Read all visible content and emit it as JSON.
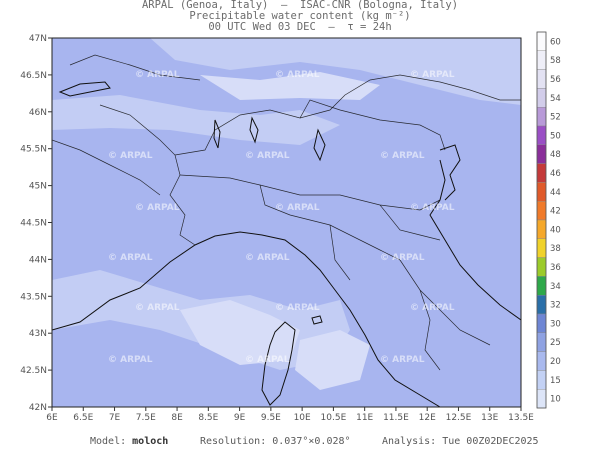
{
  "header": {
    "line1": "ARPAL (Genoa, Italy)  —  ISAC-CNR (Bologna, Italy)",
    "line2": "Precipitable water content (kg m⁻²)",
    "line3": "00 UTC Wed 03 DEC  —  τ = 24h"
  },
  "watermark": "ARPAL",
  "lat_ticks": [
    "47N",
    "46.5N",
    "46N",
    "45.5N",
    "45N",
    "44.5N",
    "44N",
    "43.5N",
    "43N",
    "42.5N",
    "42N"
  ],
  "lon_ticks": [
    "6E",
    "6.5E",
    "7E",
    "7.5E",
    "8E",
    "8.5E",
    "9E",
    "9.5E",
    "10E",
    "10.5E",
    "11E",
    "11.5E",
    "12E",
    "12.5E",
    "13E",
    "13.5E"
  ],
  "colorbar": {
    "labels": [
      "60",
      "58",
      "56",
      "54",
      "52",
      "50",
      "48",
      "46",
      "44",
      "42",
      "40",
      "38",
      "36",
      "34",
      "32",
      "30",
      "25",
      "20",
      "15",
      "10"
    ],
    "colors": [
      "#fbfbfd",
      "#efeff8",
      "#e3e2f3",
      "#d2cdea",
      "#b89ad8",
      "#9a4fc5",
      "#8a2f9a",
      "#c43a3a",
      "#e05a2a",
      "#f07a2a",
      "#f5a82a",
      "#f0d22a",
      "#9ccb2a",
      "#2ea84a",
      "#2a6fa8",
      "#6e86d4",
      "#8fa2e2",
      "#a9b9ee",
      "#c3d1f4",
      "#dde5f8"
    ]
  },
  "map": {
    "base_color": "#a8b5ef",
    "light_color": "#c3cdf4",
    "lighter_color": "#d7ddf8"
  },
  "footer": {
    "model_label": "Model:",
    "model_value": "moloch",
    "resolution_label": "Resolution:",
    "resolution_value": "0.037°×0.028°",
    "analysis_label": "Analysis:",
    "analysis_value": "Tue 00Z02DEC2025"
  }
}
